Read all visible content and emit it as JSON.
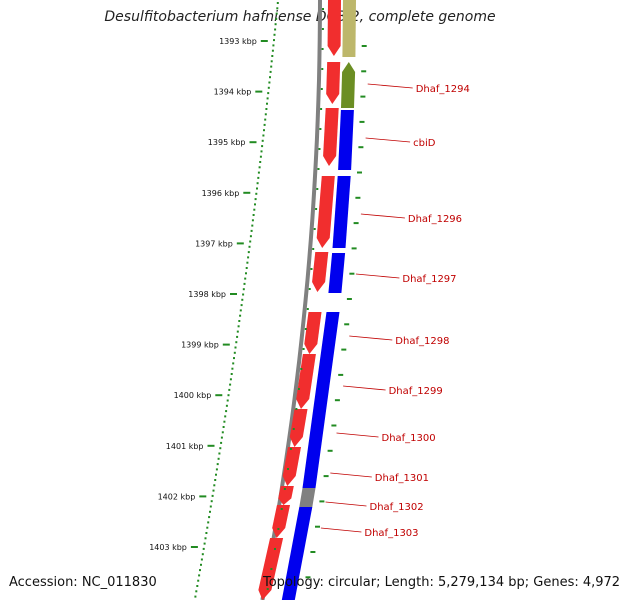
{
  "title": "Desulfitobacterium hafniense DCB-2, complete genome",
  "accession": "Accession: NC_011830",
  "summary": "Topology: circular; Length: 5,279,134 bp; Genes: 4,972",
  "ruler": [
    "1393 kbp",
    "1394 kbp",
    "1395 kbp",
    "1396 kbp",
    "1397 kbp",
    "1398 kbp",
    "1399 kbp",
    "1400 kbp",
    "1401 kbp",
    "1402 kbp",
    "1403 kbp"
  ],
  "gene_labels": [
    "Dhaf_1294",
    "cbiD",
    "Dhaf_1296",
    "Dhaf_1297",
    "Dhaf_1298",
    "Dhaf_1299",
    "Dhaf_1300",
    "Dhaf_1301",
    "Dhaf_1302",
    "Dhaf_1303"
  ],
  "colors": {
    "cds": "#ee0000",
    "cds_outer": "#0000ee",
    "outer_olive": "#6b8e23",
    "outer_khaki": "#bdb76b",
    "outer_gray": "#808080",
    "backbone": "#808080",
    "ruler_dots": "#228b22",
    "label": "#c00000"
  }
}
